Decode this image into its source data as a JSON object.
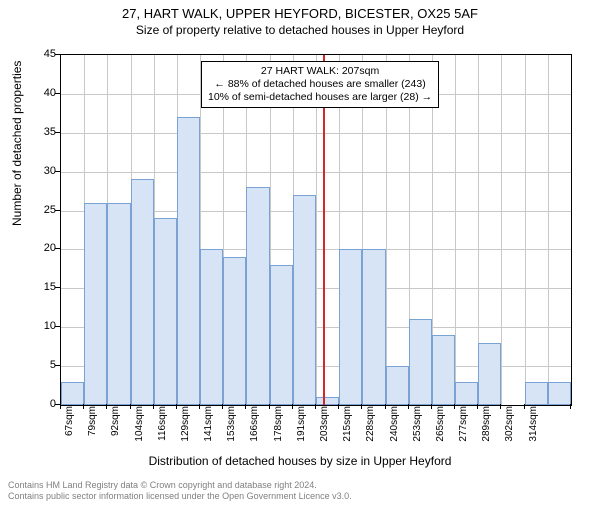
{
  "title_main": "27, HART WALK, UPPER HEYFORD, BICESTER, OX25 5AF",
  "title_sub": "Size of property relative to detached houses in Upper Heyford",
  "y_label": "Number of detached properties",
  "x_label": "Distribution of detached houses by size in Upper Heyford",
  "chart": {
    "type": "histogram",
    "ylim": [
      0,
      45
    ],
    "ytick_step": 5,
    "background_color": "#ffffff",
    "grid_color": "#c8c8c8",
    "bar_fill": "#d6e4f5",
    "bar_border": "#7aa2d4",
    "ref_line_color": "#d62728",
    "ref_line_x_index": 11,
    "x_labels": [
      "67sqm",
      "79sqm",
      "92sqm",
      "104sqm",
      "116sqm",
      "129sqm",
      "141sqm",
      "153sqm",
      "166sqm",
      "178sqm",
      "191sqm",
      "203sqm",
      "215sqm",
      "228sqm",
      "240sqm",
      "253sqm",
      "265sqm",
      "277sqm",
      "289sqm",
      "302sqm",
      "314sqm"
    ],
    "values": [
      3,
      26,
      26,
      29,
      24,
      37,
      20,
      19,
      28,
      18,
      27,
      1,
      20,
      20,
      5,
      11,
      9,
      3,
      8,
      0,
      3,
      3
    ]
  },
  "annot": {
    "line1": "27 HART WALK: 207sqm",
    "line2": "← 88% of detached houses are smaller (243)",
    "line3": "10% of semi-detached houses are larger (28) →"
  },
  "footer_line1": "Contains HM Land Registry data © Crown copyright and database right 2024.",
  "footer_line2": "Contains public sector information licensed under the Open Government Licence v3.0."
}
